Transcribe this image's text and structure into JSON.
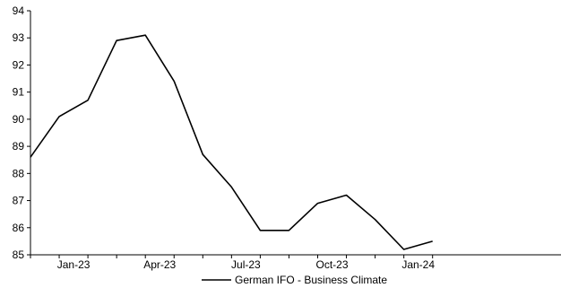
{
  "chart_data": {
    "type": "line",
    "title": "",
    "xlabel": "",
    "ylabel": "",
    "x": [
      "Dec-22",
      "Jan-23",
      "Feb-23",
      "Mar-23",
      "Apr-23",
      "May-23",
      "Jun-23",
      "Jul-23",
      "Aug-23",
      "Sep-23",
      "Oct-23",
      "Nov-23",
      "Dec-23",
      "Jan-24",
      "Feb-24"
    ],
    "x_tick_labels": [
      "Jan-23",
      "Apr-23",
      "Jul-23",
      "Oct-23",
      "Jan-24"
    ],
    "y_ticks": [
      85,
      86,
      87,
      88,
      89,
      90,
      91,
      92,
      93,
      94
    ],
    "ylim": [
      85,
      94
    ],
    "grid": false,
    "legend_position": "bottom-center",
    "series": [
      {
        "name": "German IFO - Business Climate",
        "color": "#000000",
        "values": [
          88.6,
          90.1,
          90.7,
          92.9,
          93.1,
          91.4,
          88.7,
          87.5,
          85.9,
          85.9,
          86.9,
          87.2,
          86.3,
          85.2,
          85.5
        ]
      }
    ]
  }
}
